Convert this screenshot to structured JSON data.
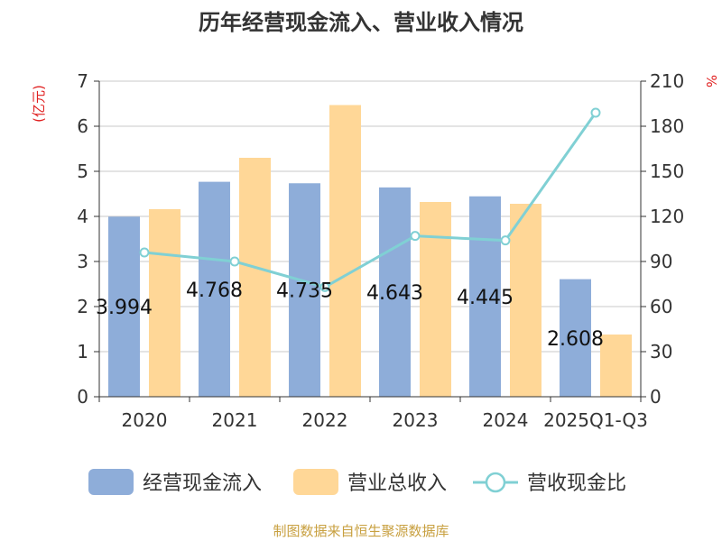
{
  "chart_data": {
    "type": "bar",
    "title": "历年经营现金流入、营业收入情况",
    "categories": [
      "2020",
      "2021",
      "2022",
      "2023",
      "2024",
      "2025Q1-Q3"
    ],
    "series": [
      {
        "name": "经营现金流入",
        "values": [
          3.994,
          4.768,
          4.735,
          4.643,
          4.445,
          2.608
        ],
        "color": "#8eadd9",
        "axis": "left",
        "labels": [
          "3.994",
          "4.768",
          "4.735",
          "4.643",
          "4.445",
          "2.608"
        ]
      },
      {
        "name": "营业总收入",
        "values": [
          4.16,
          5.3,
          6.47,
          4.32,
          4.28,
          1.38
        ],
        "color": "#ffd797",
        "axis": "left"
      },
      {
        "name": "营收现金比",
        "values": [
          96,
          90,
          73,
          107,
          104,
          189
        ],
        "color": "#80d0d4",
        "axis": "right",
        "kind": "line"
      }
    ],
    "left_axis": {
      "unit": "(亿元)",
      "ylim": [
        0,
        7
      ],
      "ticks": [
        "0",
        "1",
        "2",
        "3",
        "4",
        "5",
        "6",
        "7"
      ]
    },
    "right_axis": {
      "unit": "%",
      "ylim": [
        0,
        210
      ],
      "ticks": [
        "0",
        "30",
        "60",
        "90",
        "120",
        "150",
        "180",
        "210"
      ]
    },
    "grid": true,
    "legend_position": "bottom"
  },
  "source": "制图数据来自恒生聚源数据库"
}
